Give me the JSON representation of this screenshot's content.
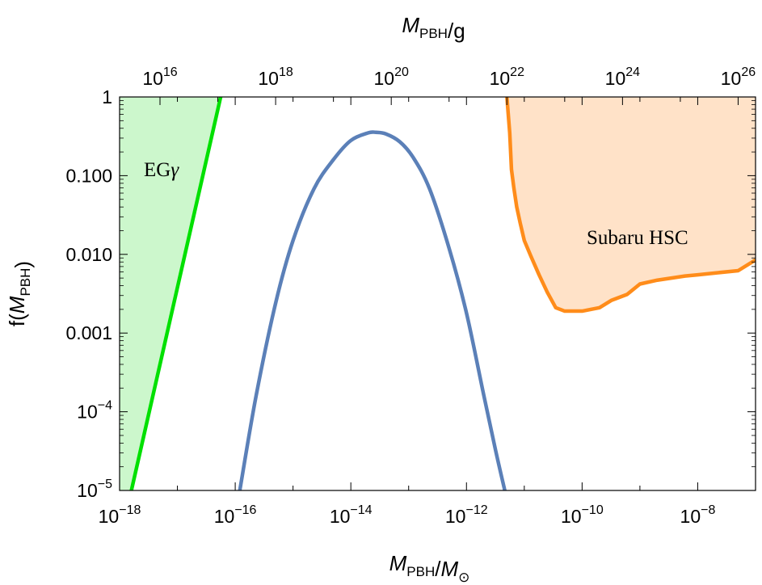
{
  "chart_data": {
    "type": "line",
    "xscale": "log",
    "yscale": "log",
    "xlabel": "M_PBH/M_⊙",
    "ylabel": "f(M_PBH)",
    "top_xlabel": "M_PBH/g",
    "xlim": [
      1e-18,
      1e-07
    ],
    "ylim": [
      1e-05,
      1
    ],
    "top_xlim_grams": [
      2000000000000000.0,
      2e+26
    ],
    "x_ticks": [
      "10^-18",
      "10^-16",
      "10^-14",
      "10^-12",
      "10^-10",
      "10^-8"
    ],
    "y_ticks": [
      "1",
      "0.100",
      "0.010",
      "0.001",
      "10^-4",
      "10^-5"
    ],
    "top_ticks": [
      "10^16",
      "10^18",
      "10^20",
      "10^22",
      "10^24",
      "10^26"
    ],
    "series": [
      {
        "name": "",
        "color": "#5b80b8",
        "x": [
          1.2e-16,
          2.3e-16,
          5e-16,
          1e-15,
          2.3e-15,
          5e-15,
          1e-14,
          2e-14,
          2.7e-14,
          4e-14,
          7e-14,
          1.2e-13,
          2.3e-13,
          5e-13,
          1e-12,
          2e-12,
          3.2e-12,
          4.6e-12
        ],
        "y": [
          1e-05,
          0.00016,
          0.0024,
          0.015,
          0.068,
          0.16,
          0.28,
          0.35,
          0.355,
          0.34,
          0.27,
          0.17,
          0.068,
          0.012,
          0.0018,
          0.00016,
          3.2e-05,
          1e-05
        ]
      }
    ],
    "regions": [
      {
        "label": "EGγ",
        "color": "#00e000",
        "fill": "#ccf7cc",
        "boundary_x": [
          1.6e-18,
          5.6e-17
        ],
        "boundary_y": [
          1e-05,
          1
        ]
      },
      {
        "label": "Subaru HSC",
        "color": "#ff8c1a",
        "fill": "#ffe2c8",
        "boundary_x": [
          5e-12,
          5.6e-12,
          6e-12,
          6.6e-12,
          7.4e-12,
          8.5e-12,
          1e-11,
          1.3e-11,
          1.8e-11,
          2.5e-11,
          3.5e-11,
          5e-11,
          1e-10,
          2e-10,
          3.2e-10,
          6e-10,
          1e-09,
          2e-09,
          6e-09,
          1e-08,
          2e-08,
          5e-08,
          1e-07
        ],
        "boundary_y": [
          1,
          0.35,
          0.12,
          0.07,
          0.04,
          0.025,
          0.015,
          0.0095,
          0.0055,
          0.0033,
          0.0021,
          0.0019,
          0.0019,
          0.0021,
          0.0026,
          0.0031,
          0.0042,
          0.0047,
          0.0053,
          0.0055,
          0.0058,
          0.0062,
          0.0085
        ]
      }
    ]
  }
}
